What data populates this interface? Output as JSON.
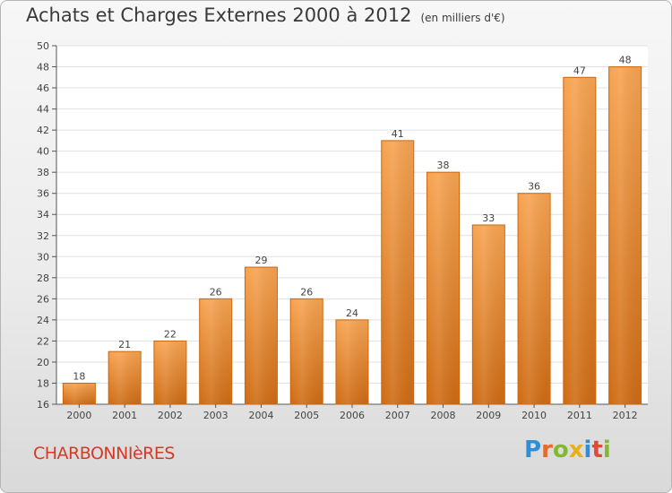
{
  "title": "Achats et Charges Externes 2000 à 2012",
  "subtitle": "(en milliers d'€)",
  "commune": "CHARBONNIèRES",
  "brand": {
    "letters": [
      {
        "ch": "P",
        "color": "#2e8fd6"
      },
      {
        "ch": "r",
        "color": "#e8692a"
      },
      {
        "ch": "o",
        "color": "#84b733"
      },
      {
        "ch": "x",
        "color": "#e8b020"
      },
      {
        "ch": "i",
        "color": "#2e8fd6"
      },
      {
        "ch": "t",
        "color": "#e04a38"
      },
      {
        "ch": "i",
        "color": "#84b733"
      }
    ]
  },
  "chart_data": {
    "type": "bar",
    "title": "Achats et Charges Externes 2000 à 2012",
    "subtitle": "(en milliers d'€)",
    "categories": [
      "2000",
      "2001",
      "2002",
      "2003",
      "2004",
      "2005",
      "2006",
      "2007",
      "2008",
      "2009",
      "2010",
      "2011",
      "2012"
    ],
    "values": [
      18,
      21,
      22,
      26,
      29,
      26,
      24,
      41,
      38,
      33,
      36,
      47,
      48
    ],
    "ylim": [
      16,
      50
    ],
    "yticks": [
      16,
      18,
      20,
      22,
      24,
      26,
      28,
      30,
      32,
      34,
      36,
      38,
      40,
      42,
      44,
      46,
      48,
      50
    ],
    "grid": true,
    "bar_color": "#f0913a",
    "bar_color_dark": "#d06d16",
    "grid_color": "#e0e0e0"
  }
}
